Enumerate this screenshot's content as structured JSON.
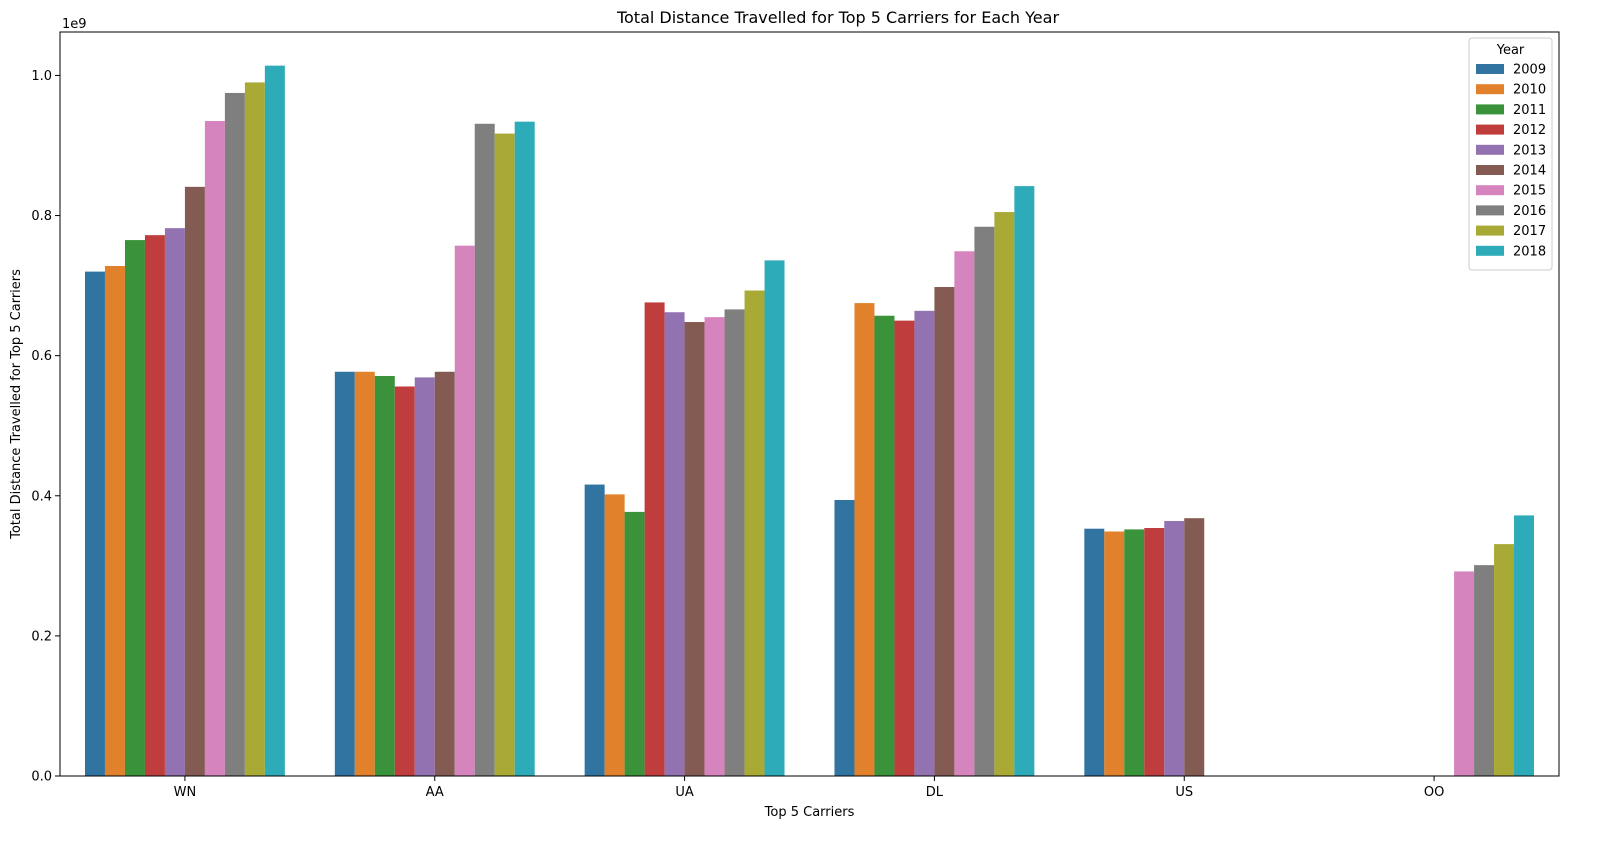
{
  "chart_data": {
    "type": "bar",
    "title": "Total Distance Travelled for Top 5 Carriers for Each Year",
    "xlabel": "Top 5 Carriers",
    "ylabel": "Total Distance Travelled for Top 5 Carriers",
    "y_offset_text": "1e9",
    "ylim": [
      0,
      1.062
    ],
    "y_ticks": [
      0.0,
      0.2,
      0.4,
      0.6,
      0.8,
      1.0
    ],
    "y_tick_labels": [
      "0.0",
      "0.2",
      "0.4",
      "0.6",
      "0.8",
      "1.0"
    ],
    "categories": [
      "WN",
      "AA",
      "UA",
      "DL",
      "US",
      "OO"
    ],
    "legend_title": "Year",
    "legend_position": "top-right",
    "grid": false,
    "series": [
      {
        "name": "2009",
        "color": "#3274a1",
        "values": [
          0.72,
          0.577,
          0.416,
          0.394,
          0.353,
          null
        ]
      },
      {
        "name": "2010",
        "color": "#e1812c",
        "values": [
          0.728,
          0.577,
          0.402,
          0.675,
          0.349,
          null
        ]
      },
      {
        "name": "2011",
        "color": "#3a923a",
        "values": [
          0.765,
          0.571,
          0.377,
          0.657,
          0.352,
          null
        ]
      },
      {
        "name": "2012",
        "color": "#c03d3e",
        "values": [
          0.772,
          0.556,
          0.676,
          0.65,
          0.354,
          null
        ]
      },
      {
        "name": "2013",
        "color": "#9372b2",
        "values": [
          0.782,
          0.569,
          0.662,
          0.664,
          0.364,
          null
        ]
      },
      {
        "name": "2014",
        "color": "#845b53",
        "values": [
          0.841,
          0.577,
          0.648,
          0.698,
          0.368,
          null
        ]
      },
      {
        "name": "2015",
        "color": "#d684bd",
        "values": [
          0.935,
          0.757,
          0.655,
          0.749,
          null,
          0.292
        ]
      },
      {
        "name": "2016",
        "color": "#7f7f7f",
        "values": [
          0.975,
          0.931,
          0.666,
          0.784,
          null,
          0.301
        ]
      },
      {
        "name": "2017",
        "color": "#a9aa35",
        "values": [
          0.99,
          0.917,
          0.693,
          0.805,
          null,
          0.331
        ]
      },
      {
        "name": "2018",
        "color": "#2eabb8",
        "values": [
          1.014,
          0.934,
          0.736,
          0.842,
          null,
          0.372
        ]
      }
    ]
  }
}
